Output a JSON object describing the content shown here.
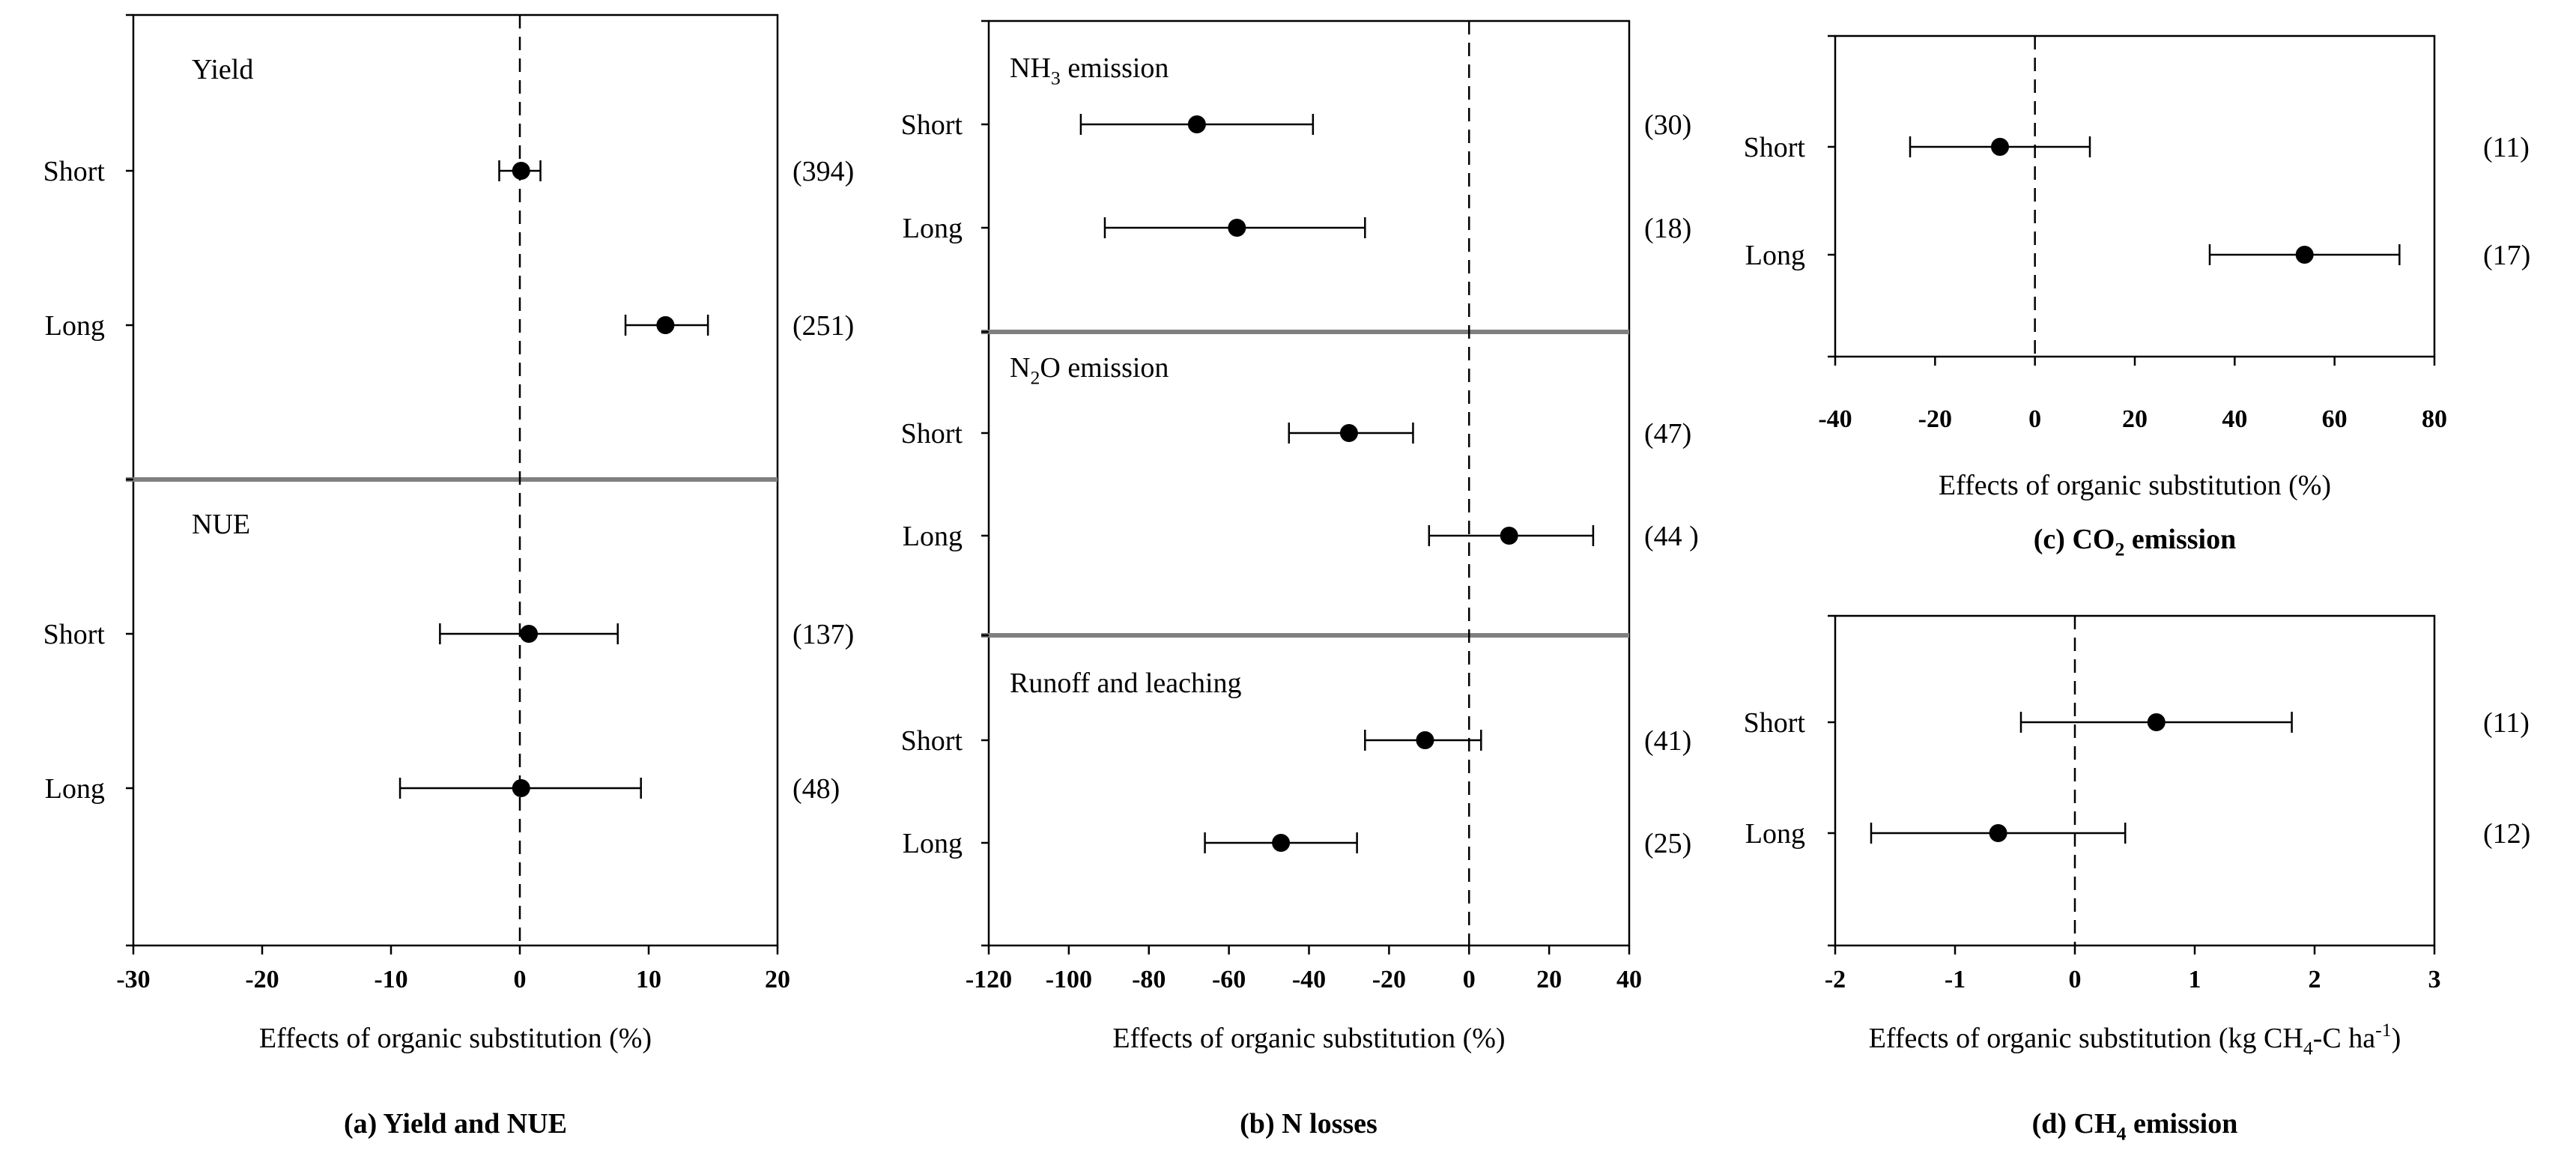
{
  "chart_data": [
    {
      "id": "a",
      "type": "forest",
      "caption_prefix": "(a)",
      "caption_text": "Yield and NUE",
      "xlabel": "Effects of organic substitution (%)",
      "xlim": [
        -30,
        20
      ],
      "xticks": [
        "-30",
        "-20",
        "-10",
        "0",
        "10",
        "20"
      ],
      "xtick_values": [
        -30,
        -20,
        -10,
        0,
        10,
        20
      ],
      "panels": [
        {
          "title": "Yield",
          "rows": [
            {
              "label": "Short",
              "mean": 0.1,
              "lo": -1.6,
              "hi": 1.6,
              "n": "(394)"
            },
            {
              "label": "Long",
              "mean": 11.3,
              "lo": 8.2,
              "hi": 14.6,
              "n": "(251)"
            }
          ]
        },
        {
          "title": "NUE",
          "rows": [
            {
              "label": "Short",
              "mean": 0.7,
              "lo": -6.2,
              "hi": 7.6,
              "n": "(137)"
            },
            {
              "label": "Long",
              "mean": 0.1,
              "lo": -9.3,
              "hi": 9.4,
              "n": "(48)"
            }
          ]
        }
      ]
    },
    {
      "id": "b",
      "type": "forest",
      "caption_prefix": "(b)",
      "caption_text": "N losses",
      "xlabel": "Effects of organic substitution (%)",
      "xlim": [
        -120,
        40
      ],
      "xticks": [
        "-120",
        "-100",
        "-80",
        "-60",
        "-40",
        "-20",
        "0",
        "20",
        "40"
      ],
      "xtick_values": [
        -120,
        -100,
        -80,
        -60,
        -40,
        -20,
        0,
        20,
        40
      ],
      "panels": [
        {
          "title": "NH3 emission",
          "title_main": "NH",
          "title_sub": "3",
          "title_rest": " emission",
          "rows": [
            {
              "label": "Short",
              "mean": -68,
              "lo": -97,
              "hi": -39,
              "n": "(30)"
            },
            {
              "label": "Long",
              "mean": -58,
              "lo": -91,
              "hi": -26,
              "n": "(18)"
            }
          ]
        },
        {
          "title": "N2O emission",
          "title_main": "N",
          "title_sub": "2",
          "title_rest": "O emission",
          "rows": [
            {
              "label": "Short",
              "mean": -30,
              "lo": -45,
              "hi": -14,
              "n": "(47)"
            },
            {
              "label": "Long",
              "mean": 10,
              "lo": -10,
              "hi": 31,
              "n": "(44 )"
            }
          ]
        },
        {
          "title": "Runoff and leaching",
          "title_main": "Runoff and leaching",
          "title_sub": "",
          "title_rest": "",
          "rows": [
            {
              "label": "Short",
              "mean": -11,
              "lo": -26,
              "hi": 3,
              "n": "(41)"
            },
            {
              "label": "Long",
              "mean": -47,
              "lo": -66,
              "hi": -28,
              "n": "(25)"
            }
          ]
        }
      ]
    },
    {
      "id": "c",
      "type": "forest",
      "caption_prefix": "(c)",
      "caption_text": "CO2 emission",
      "caption_main": "CO",
      "caption_sub": "2",
      "caption_rest": " emission",
      "xlabel": "Effects of organic substitution (%)",
      "xlim": [
        -40,
        80
      ],
      "xticks": [
        "-40",
        "-20",
        "0",
        "20",
        "40",
        "60",
        "80"
      ],
      "xtick_values": [
        -40,
        -20,
        0,
        20,
        40,
        60,
        80
      ],
      "panels": [
        {
          "title": "",
          "rows": [
            {
              "label": "Short",
              "mean": -7,
              "lo": -25,
              "hi": 11,
              "n": "(11)"
            },
            {
              "label": "Long",
              "mean": 54,
              "lo": 35,
              "hi": 73,
              "n": "(17)"
            }
          ]
        }
      ]
    },
    {
      "id": "d",
      "type": "forest",
      "caption_prefix": "(d)",
      "caption_text": "CH4 emission",
      "caption_main": "CH",
      "caption_sub": "4",
      "caption_rest": " emission",
      "xlabel": "Effects of organic substitution (kg CH4-C ha-1)",
      "xlabel_parts": [
        "Effects of organic substitution (kg CH",
        "4",
        "-C ha",
        "-1",
        ")"
      ],
      "xlim": [
        -2,
        3
      ],
      "xticks": [
        "-2",
        "-1",
        "0",
        "1",
        "2",
        "3"
      ],
      "xtick_values": [
        -2,
        -1,
        0,
        1,
        2,
        3
      ],
      "panels": [
        {
          "title": "",
          "rows": [
            {
              "label": "Short",
              "mean": 0.68,
              "lo": -0.45,
              "hi": 1.81,
              "n": "(11)"
            },
            {
              "label": "Long",
              "mean": -0.64,
              "lo": -1.7,
              "hi": 0.42,
              "n": "(12)"
            }
          ]
        }
      ]
    }
  ]
}
